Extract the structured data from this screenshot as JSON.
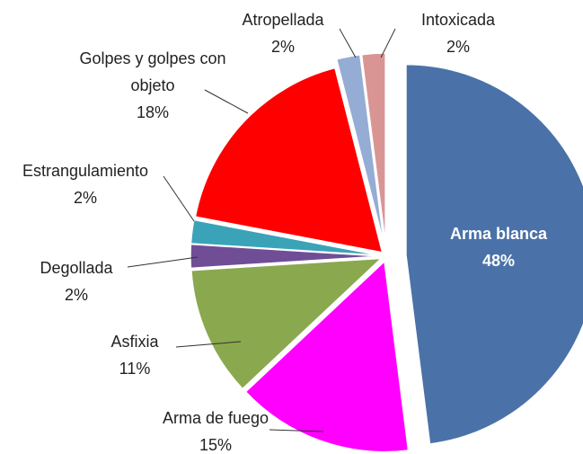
{
  "chart_data": {
    "type": "pie",
    "categories": [
      "Arma blanca",
      "Arma de fuego",
      "Asfixia",
      "Degollada",
      "Estrangulamiento",
      "Golpes y golpes con objeto",
      "Atropellada",
      "Intoxicada"
    ],
    "values": [
      48,
      15,
      11,
      2,
      2,
      18,
      2,
      2
    ],
    "value_labels": [
      "48%",
      "15%",
      "11%",
      "2%",
      "2%",
      "18%",
      "2%",
      "2%"
    ],
    "colors": [
      "#4a72a8",
      "#ff00ff",
      "#8aa84e",
      "#6f4e96",
      "#3aa3b8",
      "#ff0000",
      "#95acd4",
      "#d99594"
    ]
  }
}
